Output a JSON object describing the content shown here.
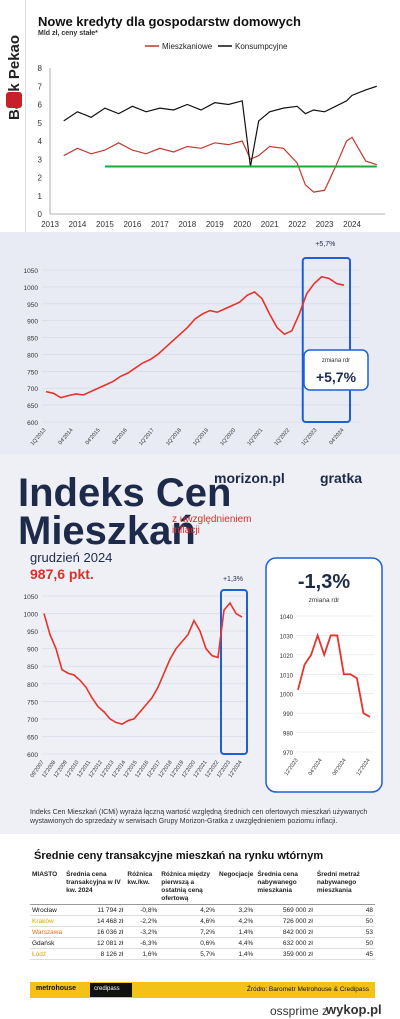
{
  "pekao": {
    "brand": "Bank Pekao",
    "title": "Nowe kredyty dla gospodarstw domowych",
    "subtitle": "Mld zł, ceny stałe*",
    "colors": {
      "mieszkaniowe": "#c0392b",
      "konsumpcyjne": "#111111",
      "threshold": "#1fa83a"
    }
  },
  "morizon": {
    "title_line1": "Indeks Cen",
    "title_line2": "Mieszkań",
    "title_note": "z uwzględnieniem inflacji",
    "month": "grudzień 2024",
    "points": "987,6 pkt.",
    "brand1": "morizon.pl",
    "brand2": "gratka",
    "footnote": "Indeks Cen Mieszkań (ICMi) wyraża łączną wartość względną średnich cen ofertowych mieszkań używanych wystawionych do sprzedaży w serwisach Grupy Morizon-Gratka z uwzględnieniem poziomu inflacji.",
    "accent": "#e8322a",
    "highlight": "#1f5fd6"
  },
  "table": {
    "title": "Średnie ceny transakcyjne mieszkań na rynku wtórnym",
    "headers": [
      "MIASTO",
      "Średnia cena transakcyjna w IV kw. 2024",
      "Różnica kw./kw.",
      "Różnica między pierwszą a ostatnią ceną ofertową",
      "Negocjacje",
      "Średnia cena nabywanego mieszkania",
      "Średni metraż nabywanego mieszkania"
    ],
    "rows": [
      {
        "city": "Wrocław",
        "price": "11 794 zł",
        "qq": "-0,8%",
        "diff": "4,2%",
        "neg": "3,2%",
        "avg": "569 000 zł",
        "area": "48",
        "color": "#111111"
      },
      {
        "city": "Kraków",
        "price": "14 468 zł",
        "qq": "-2,2%",
        "diff": "4,6%",
        "neg": "4,2%",
        "avg": "726 000 zł",
        "area": "50",
        "color": "#e0a800"
      },
      {
        "city": "Warszawa",
        "price": "16 036 zł",
        "qq": "-3,2%",
        "diff": "7,2%",
        "neg": "1,4%",
        "avg": "842 000 zł",
        "area": "53",
        "color": "#e0701a"
      },
      {
        "city": "Gdańsk",
        "price": "12 081 zł",
        "qq": "-6,3%",
        "diff": "0,6%",
        "neg": "4,4%",
        "avg": "632 000 zł",
        "area": "50",
        "color": "#111111"
      },
      {
        "city": "Łódź",
        "price": "8 126 zł",
        "qq": "1,6%",
        "diff": "5,7%",
        "neg": "1,4%",
        "avg": "359 000 zł",
        "area": "45",
        "color": "#e0a800"
      }
    ],
    "footer_brand1": "metrohouse",
    "footer_brand2": "credipass",
    "source": "Źródło: Barometr Metrohouse & Credipass"
  },
  "wykop": {
    "user": "ossprime",
    "separator": "z",
    "logo": "wykop.pl"
  },
  "chart_data": [
    {
      "type": "line",
      "title": "Nowe kredyty dla gospodarstw domowych",
      "ylabel": "Mld zł, ceny stałe*",
      "ylim": [
        0,
        8
      ],
      "yticks": [
        "0",
        "1",
        "2",
        "3",
        "4",
        "5",
        "6",
        "7",
        "8"
      ],
      "xticks": [
        "2013",
        "2014",
        "2015",
        "2016",
        "2017",
        "2018",
        "2019",
        "2020",
        "2021",
        "2022",
        "2023",
        "2024"
      ],
      "legend": "top",
      "series": [
        {
          "name": "Mieszkaniowe",
          "x": [
            2013.5,
            2014,
            2014.5,
            2015,
            2015.5,
            2016,
            2016.5,
            2017,
            2017.5,
            2018,
            2018.5,
            2019,
            2019.5,
            2020,
            2020.3,
            2020.6,
            2021,
            2021.5,
            2022,
            2022.3,
            2022.6,
            2023,
            2023.4,
            2023.8,
            2024,
            2024.5,
            2024.9
          ],
          "y": [
            3.2,
            3.6,
            3.3,
            3.5,
            3.9,
            3.5,
            3.3,
            3.6,
            3.4,
            3.7,
            3.6,
            3.9,
            3.8,
            4.0,
            3.0,
            3.2,
            3.7,
            3.6,
            2.8,
            1.6,
            1.2,
            1.3,
            2.6,
            4.0,
            4.2,
            2.9,
            2.7
          ]
        },
        {
          "name": "Konsumpcyjne",
          "x": [
            2013.5,
            2014,
            2014.5,
            2015,
            2015.5,
            2016,
            2016.5,
            2017,
            2017.5,
            2018,
            2018.5,
            2019,
            2019.5,
            2020,
            2020.3,
            2020.6,
            2021,
            2021.5,
            2022,
            2022.3,
            2022.6,
            2023,
            2023.4,
            2023.8,
            2024,
            2024.5,
            2024.9
          ],
          "y": [
            5.1,
            5.6,
            5.3,
            5.8,
            5.5,
            5.9,
            5.6,
            5.8,
            5.7,
            6.0,
            5.7,
            6.1,
            6.0,
            6.2,
            2.6,
            5.1,
            5.6,
            5.8,
            5.9,
            5.5,
            5.7,
            5.6,
            5.9,
            6.2,
            6.5,
            6.8,
            7.0
          ]
        },
        {
          "name": "",
          "x": [
            2015,
            2024.9
          ],
          "y": [
            2.6,
            2.6
          ]
        }
      ]
    },
    {
      "type": "line",
      "ylim": [
        600,
        1050
      ],
      "yticks": [
        "600",
        "650",
        "700",
        "750",
        "800",
        "850",
        "900",
        "950",
        "1000",
        "1050"
      ],
      "xticks": [
        "1Q'2013",
        "04'2014",
        "04'2015",
        "04'2016",
        "1Q'2017",
        "1Q'2018",
        "1Q'2019",
        "1Q'2020",
        "1Q'2021",
        "1Q'2022",
        "1Q'2023",
        "04'2024"
      ],
      "annotations": [
        "+5,7%",
        "zmiana rdr",
        "+5,7%"
      ],
      "series": [
        {
          "values": [
            690,
            685,
            672,
            678,
            683,
            680,
            690,
            700,
            710,
            720,
            735,
            745,
            760,
            775,
            785,
            800,
            820,
            840,
            860,
            880,
            905,
            920,
            930,
            925,
            935,
            945,
            955,
            975,
            985,
            965,
            920,
            880,
            860,
            870,
            920,
            980,
            1010,
            1030,
            1025,
            1010,
            1005
          ]
        }
      ]
    },
    {
      "type": "line",
      "ylim": [
        600,
        1050
      ],
      "yticks": [
        "600",
        "650",
        "700",
        "750",
        "800",
        "850",
        "900",
        "950",
        "1000",
        "1050"
      ],
      "xticks": [
        "09'2007",
        "12'2008",
        "12'2009",
        "12'2010",
        "12'2011",
        "12'2012",
        "12'2013",
        "12'2014",
        "12'2015",
        "12'2016",
        "12'2017",
        "12'2018",
        "12'2019",
        "12'2020",
        "12'2021",
        "12'2022",
        "12'2023",
        "12'2024"
      ],
      "annotations": [
        "+1,3%"
      ],
      "series": [
        {
          "values": [
            1000,
            940,
            900,
            840,
            830,
            825,
            810,
            790,
            760,
            735,
            720,
            700,
            690,
            685,
            695,
            700,
            720,
            740,
            760,
            790,
            830,
            870,
            900,
            920,
            940,
            980,
            950,
            900,
            880,
            875,
            1010,
            1030,
            1000,
            990
          ]
        }
      ]
    },
    {
      "type": "line",
      "title": "-1,3%",
      "subtitle": "zmiana rdr",
      "ylim": [
        970,
        1040
      ],
      "yticks": [
        "970",
        "980",
        "990",
        "1000",
        "1010",
        "1020",
        "1030",
        "1040"
      ],
      "xticks": [
        "12'2023",
        "04'2024",
        "08'2024",
        "12'2024"
      ],
      "series": [
        {
          "values": [
            1002,
            1015,
            1020,
            1030,
            1020,
            1030,
            1030,
            1010,
            1010,
            1008,
            990,
            988
          ]
        }
      ]
    }
  ]
}
